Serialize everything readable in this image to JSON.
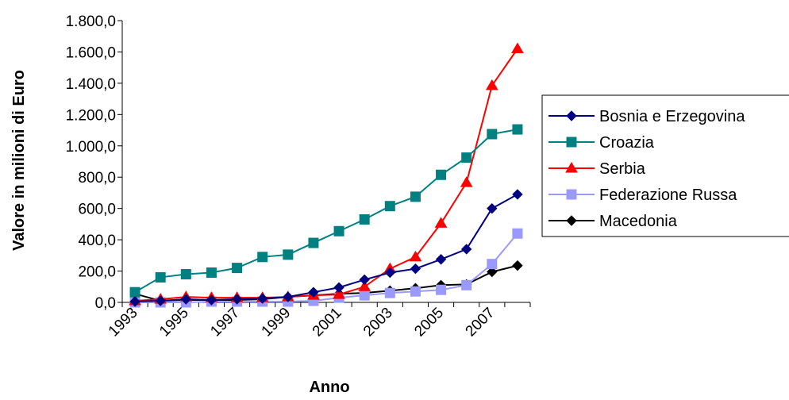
{
  "chart_data": {
    "type": "line",
    "title": "",
    "xlabel": "Anno",
    "ylabel": "Valore in milioni di Euro",
    "x": [
      1993,
      1994,
      1995,
      1996,
      1997,
      1998,
      1999,
      2000,
      2001,
      2002,
      2003,
      2004,
      2005,
      2006,
      2007,
      2008
    ],
    "x_tick_labels": [
      "1993",
      "1995",
      "1997",
      "1999",
      "2001",
      "2003",
      "2005",
      "2007"
    ],
    "ylim": [
      0,
      1800
    ],
    "y_tick_labels": [
      "0,0",
      "200,0",
      "400,0",
      "600,0",
      "800,0",
      "1.000,0",
      "1.200,0",
      "1.400,0",
      "1.600,0",
      "1.800,0"
    ],
    "grid": false,
    "legend_position": "right",
    "series": [
      {
        "name": "Bosnia e Erzegovina",
        "color": "#000080",
        "marker": "diamond",
        "values": [
          5,
          10,
          20,
          15,
          20,
          25,
          35,
          65,
          95,
          145,
          190,
          215,
          275,
          340,
          600,
          690
        ]
      },
      {
        "name": "Croazia",
        "color": "#008080",
        "marker": "square",
        "values": [
          65,
          160,
          180,
          190,
          220,
          290,
          305,
          380,
          455,
          530,
          615,
          675,
          815,
          925,
          1075,
          1105
        ]
      },
      {
        "name": "Serbia",
        "color": "#ff0000",
        "marker": "triangle",
        "values": [
          10,
          20,
          35,
          30,
          30,
          30,
          35,
          45,
          50,
          100,
          215,
          290,
          505,
          765,
          1385,
          1620
        ]
      },
      {
        "name": "Federazione Russa",
        "color": "#9999ff",
        "marker": "square",
        "values": [
          0,
          0,
          0,
          5,
          5,
          5,
          5,
          10,
          30,
          45,
          60,
          70,
          80,
          110,
          245,
          440
        ]
      },
      {
        "name": "Macedonia",
        "color": "#000000",
        "marker": "diamond",
        "values": [
          55,
          10,
          15,
          15,
          15,
          20,
          35,
          45,
          55,
          60,
          75,
          90,
          110,
          115,
          195,
          235
        ]
      }
    ]
  }
}
